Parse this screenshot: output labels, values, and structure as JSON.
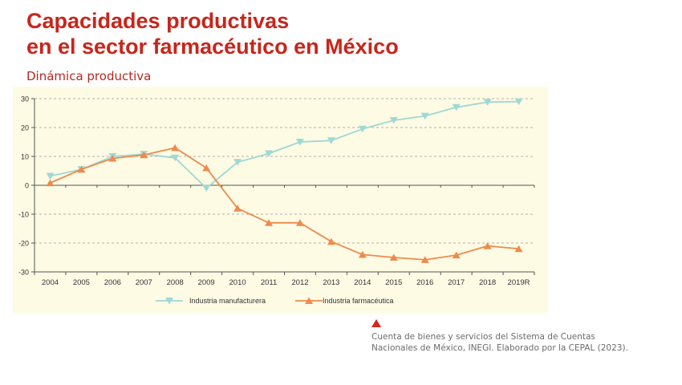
{
  "header": {
    "title_line1": "Capacidades productivas",
    "title_line2": "en el sector farmacéutico en México",
    "subtitle": "Dinámica productiva"
  },
  "source": {
    "line1": "Cuenta de bienes y servicios del Sistema de Cuentas",
    "line2": "Nacionales de México, INEGI. Elaborado por la CEPAL (2023)."
  },
  "colors": {
    "title": "#c8251b",
    "manufacturera": "#9fd8d4",
    "farmaceutica": "#ef8a4c",
    "chart_bg": "#fdfbe4"
  },
  "chart_data": {
    "type": "line",
    "categories": [
      "2004",
      "2005",
      "2006",
      "2007",
      "2008",
      "2009",
      "2010",
      "2011",
      "2012",
      "2013",
      "2014",
      "2015",
      "2016",
      "2017",
      "2018",
      "2019R"
    ],
    "ylim": [
      -30,
      30
    ],
    "yticks": [
      30,
      20,
      10,
      0,
      -10,
      -20,
      -30
    ],
    "ytick_labels": [
      "30",
      "20",
      "10",
      "0",
      "-10",
      "-20",
      "-30"
    ],
    "grid": true,
    "legend_position": "bottom",
    "series": [
      {
        "name": "Industria manufacturera",
        "marker": "triangle-down",
        "values": [
          3.2,
          5.5,
          10.0,
          10.8,
          9.5,
          -1.0,
          8.0,
          11.0,
          15.0,
          15.5,
          19.5,
          22.5,
          24.0,
          27.0,
          28.8,
          29.0
        ]
      },
      {
        "name": "Industria farmacéutica",
        "marker": "triangle-up",
        "values": [
          0.8,
          5.5,
          9.3,
          10.5,
          13.0,
          6.0,
          -8.0,
          -13.0,
          -13.0,
          -19.5,
          -24.0,
          -25.0,
          -25.8,
          -24.2,
          -21.0,
          -22.0
        ]
      }
    ]
  }
}
